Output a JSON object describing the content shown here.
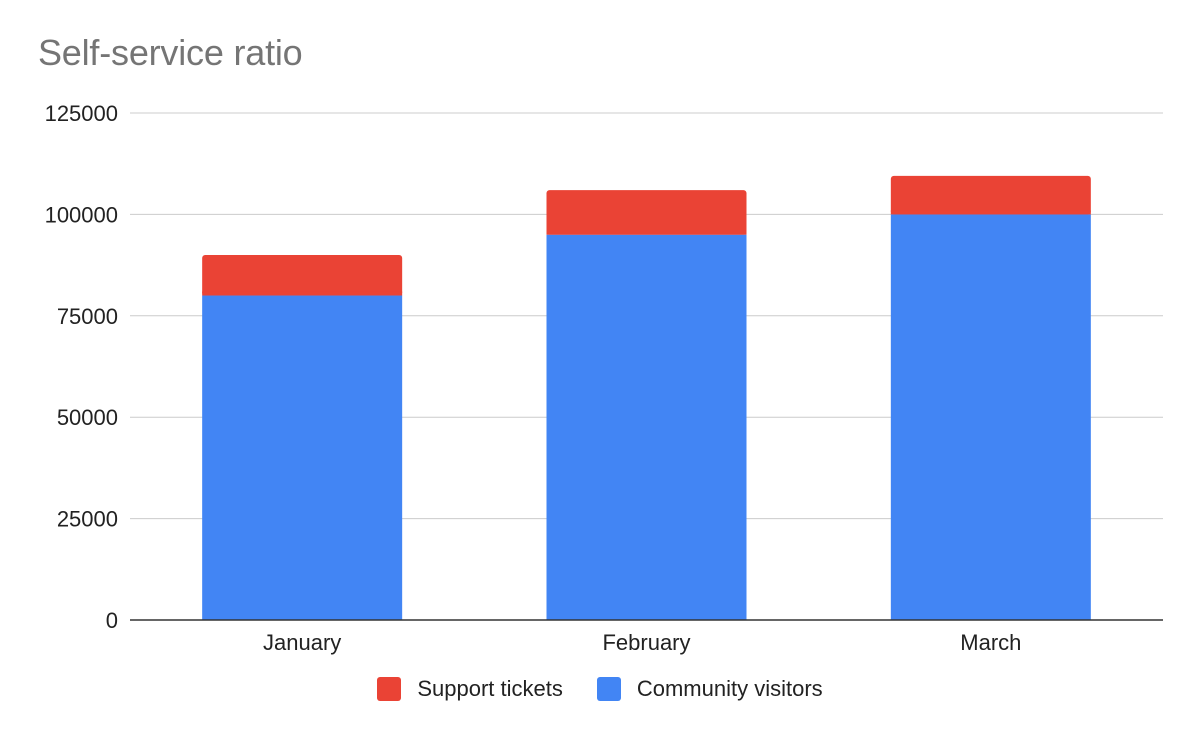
{
  "chart_data": {
    "type": "bar",
    "stacked": true,
    "title": "Self-service ratio",
    "xlabel": "",
    "ylabel": "",
    "categories": [
      "January",
      "February",
      "March"
    ],
    "series": [
      {
        "name": "Community visitors",
        "color": "#4285F4",
        "values": [
          80000,
          95000,
          100000
        ]
      },
      {
        "name": "Support tickets",
        "color": "#EA4335",
        "values": [
          10000,
          11000,
          9500
        ]
      }
    ],
    "ylim": [
      0,
      125000
    ],
    "yticks": [
      "0",
      "25000",
      "50000",
      "75000",
      "100000",
      "125000"
    ],
    "grid": true,
    "legend_position": "bottom",
    "legend_order": [
      "Support tickets",
      "Community visitors"
    ]
  }
}
